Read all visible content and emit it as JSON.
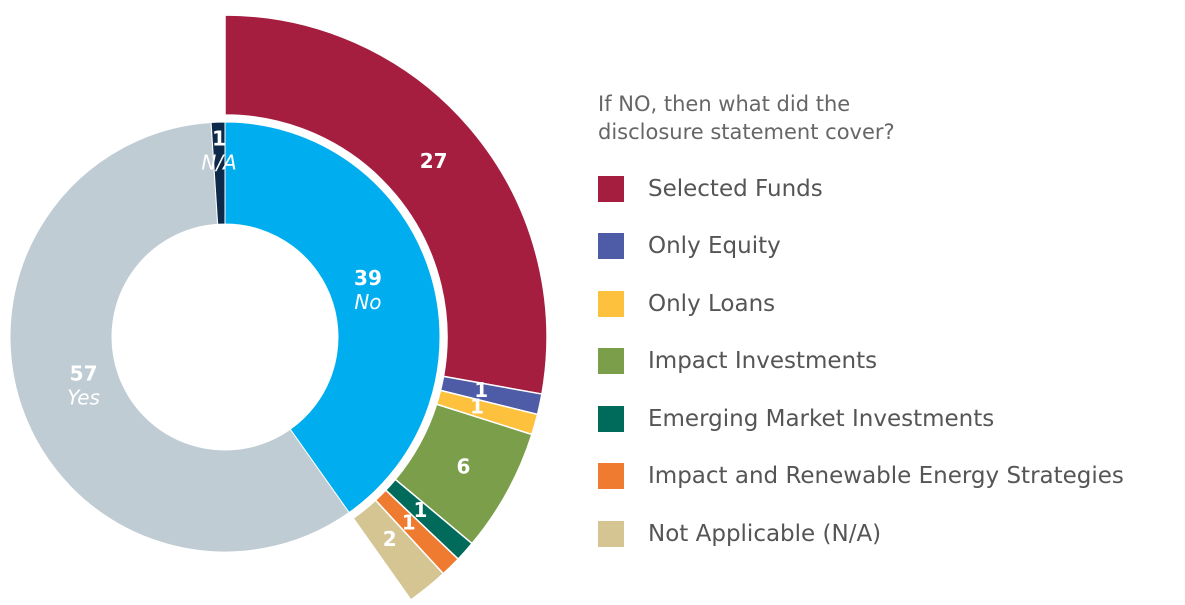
{
  "chart_data": {
    "type": "sunburst",
    "inner": {
      "categories": [
        "No",
        "Yes",
        "N/A"
      ],
      "values": [
        39,
        57,
        1
      ],
      "colors": [
        "#00aeef",
        "#bfccd4",
        "#0d2a4a"
      ]
    },
    "outer": {
      "legend_title": "If NO, then what did the disclosure statement cover?",
      "categories": [
        "Selected Funds",
        "Only Equity",
        "Only Loans",
        "Impact Investments",
        "Emerging Market Investments",
        "Impact and Renewable Energy Strategies",
        "Not Applicable (N/A)"
      ],
      "values": [
        27,
        1,
        1,
        6,
        1,
        1,
        2
      ],
      "colors": [
        "#a51e40",
        "#4e5ba6",
        "#fdc13d",
        "#7a9e4a",
        "#006b5b",
        "#ef7b31",
        "#d4c593"
      ]
    }
  }
}
